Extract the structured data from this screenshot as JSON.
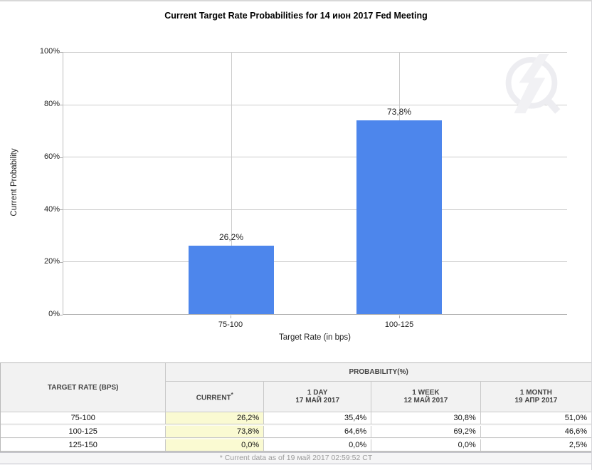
{
  "header": {
    "title": "Current Target Rate Probabilities for 14 июн 2017 Fed Meeting"
  },
  "chart": {
    "bar_color": "#4D86EC",
    "gridline_color": "#CCCCCC",
    "y_ticks": [
      "100%",
      "80%",
      "60%",
      "40%",
      "20%",
      "0%"
    ],
    "watermark_icon": "quikstrike-logo"
  },
  "chart_data": {
    "type": "bar",
    "title": "Current Target Rate Probabilities for 14 июн 2017 Fed Meeting",
    "categories": [
      "75-100",
      "100-125"
    ],
    "values": [
      26.2,
      73.8
    ],
    "value_labels": [
      "26,2%",
      "73,8%"
    ],
    "xlabel": "Target Rate (in bps)",
    "ylabel": "Current Probability",
    "ylim": [
      0,
      100
    ],
    "y_tick_step": 20,
    "grid": true,
    "legend": "none"
  },
  "table": {
    "rate_header": "TARGET RATE (BPS)",
    "group_header": "PROBABILITY(%)",
    "columns": [
      {
        "label": "CURRENT",
        "sup": "*",
        "date": ""
      },
      {
        "label": "1 DAY",
        "sup": "",
        "date": "17 МАЙ 2017"
      },
      {
        "label": "1 WEEK",
        "sup": "",
        "date": "12 МАЙ 2017"
      },
      {
        "label": "1 MONTH",
        "sup": "",
        "date": "19 АПР 2017"
      }
    ],
    "rows": [
      {
        "rate": "75-100",
        "current": "26,2%",
        "one_day": "35,4%",
        "one_week": "30,8%",
        "one_month": "51,0%"
      },
      {
        "rate": "100-125",
        "current": "73,8%",
        "one_day": "64,6%",
        "one_week": "69,2%",
        "one_month": "46,6%"
      },
      {
        "rate": "125-150",
        "current": "0,0%",
        "one_day": "0,0%",
        "one_week": "0,0%",
        "one_month": "2,5%"
      }
    ],
    "highlight_color": "#FAFAD2",
    "footnote": "* Current data as of 19 май 2017 02:59:52 CT"
  }
}
